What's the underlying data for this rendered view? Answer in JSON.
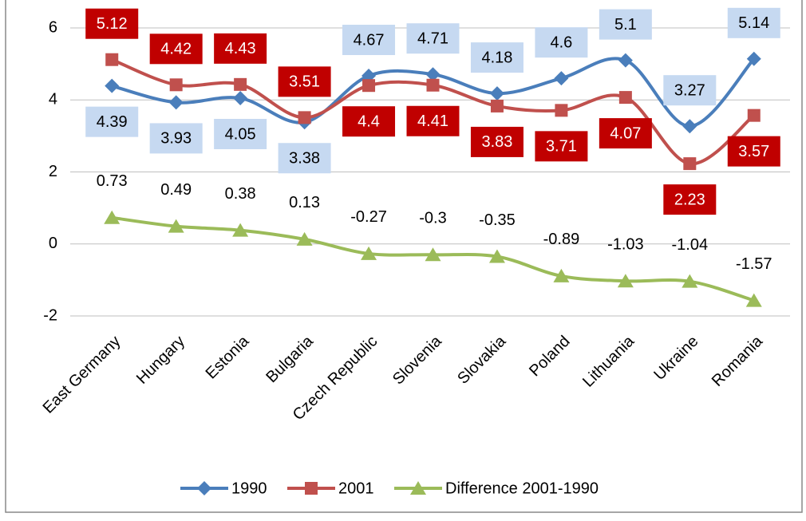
{
  "chart_data": {
    "type": "line",
    "categories": [
      "East Germany",
      "Hungary",
      "Estonia",
      "Bulgaria",
      "Czech Republic",
      "Slovenia",
      "Slovakia",
      "Poland",
      "Lithuania",
      "Ukraine",
      "Romania"
    ],
    "series": [
      {
        "name": "1990",
        "color": "#4a7ebb",
        "marker": "diamond",
        "label_color": "#c6d9f1",
        "label_text_color": "#000000",
        "values": [
          4.39,
          3.93,
          4.05,
          3.38,
          4.67,
          4.71,
          4.18,
          4.6,
          5.1,
          3.27,
          5.14
        ]
      },
      {
        "name": "2001",
        "color": "#c0504d",
        "marker": "square",
        "label_color": "#c00000",
        "label_text_color": "#ffffff",
        "values": [
          5.12,
          4.42,
          4.43,
          3.51,
          4.4,
          4.41,
          3.83,
          3.71,
          4.07,
          2.23,
          3.57
        ]
      },
      {
        "name": "Difference 2001-1990",
        "color": "#9bbb59",
        "marker": "triangle",
        "values": [
          0.73,
          0.49,
          0.38,
          0.13,
          -0.27,
          -0.3,
          -0.35,
          -0.89,
          -1.03,
          -1.04,
          -1.57
        ]
      }
    ],
    "ylim": [
      -2,
      6
    ],
    "yticks": [
      -2,
      0,
      2,
      4,
      6
    ],
    "grid": true,
    "legend": "bottom"
  }
}
